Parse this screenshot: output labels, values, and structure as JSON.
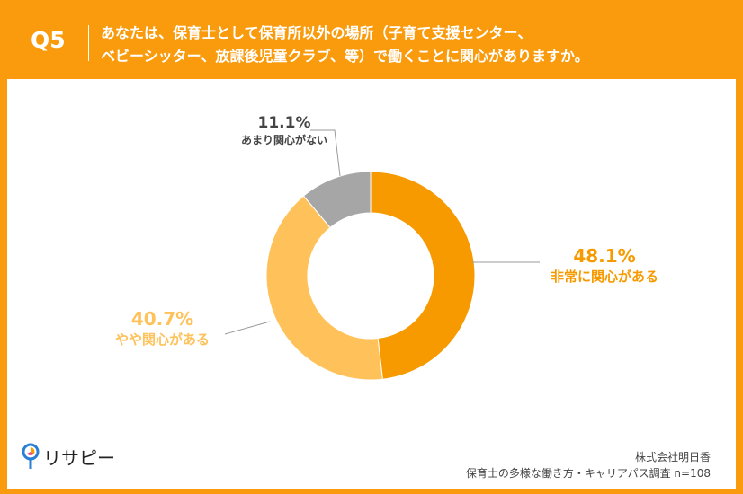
{
  "header": {
    "q_label": "Q5",
    "title_line1": "あなたは、保育士として保育所以外の場所（子育て支援センター、",
    "title_line2": "ベビーシッター、放課後児童クラブ、等）で働くことに関心がありますか。"
  },
  "chart_data": {
    "type": "pie",
    "donut": true,
    "categories": [
      "非常に関心がある",
      "やや関心がある",
      "あまり関心がない"
    ],
    "values": [
      48.1,
      40.7,
      11.1
    ],
    "labels": [
      "48.1%",
      "40.7%",
      "11.1%"
    ],
    "colors": [
      "#F79A00",
      "#FFC25A",
      "#A6A6A6"
    ]
  },
  "footer": {
    "logo_text": "リサピー",
    "company": "株式会社明日香",
    "survey": "保育士の多様な働き方・キャリアパス調査 n=108"
  }
}
